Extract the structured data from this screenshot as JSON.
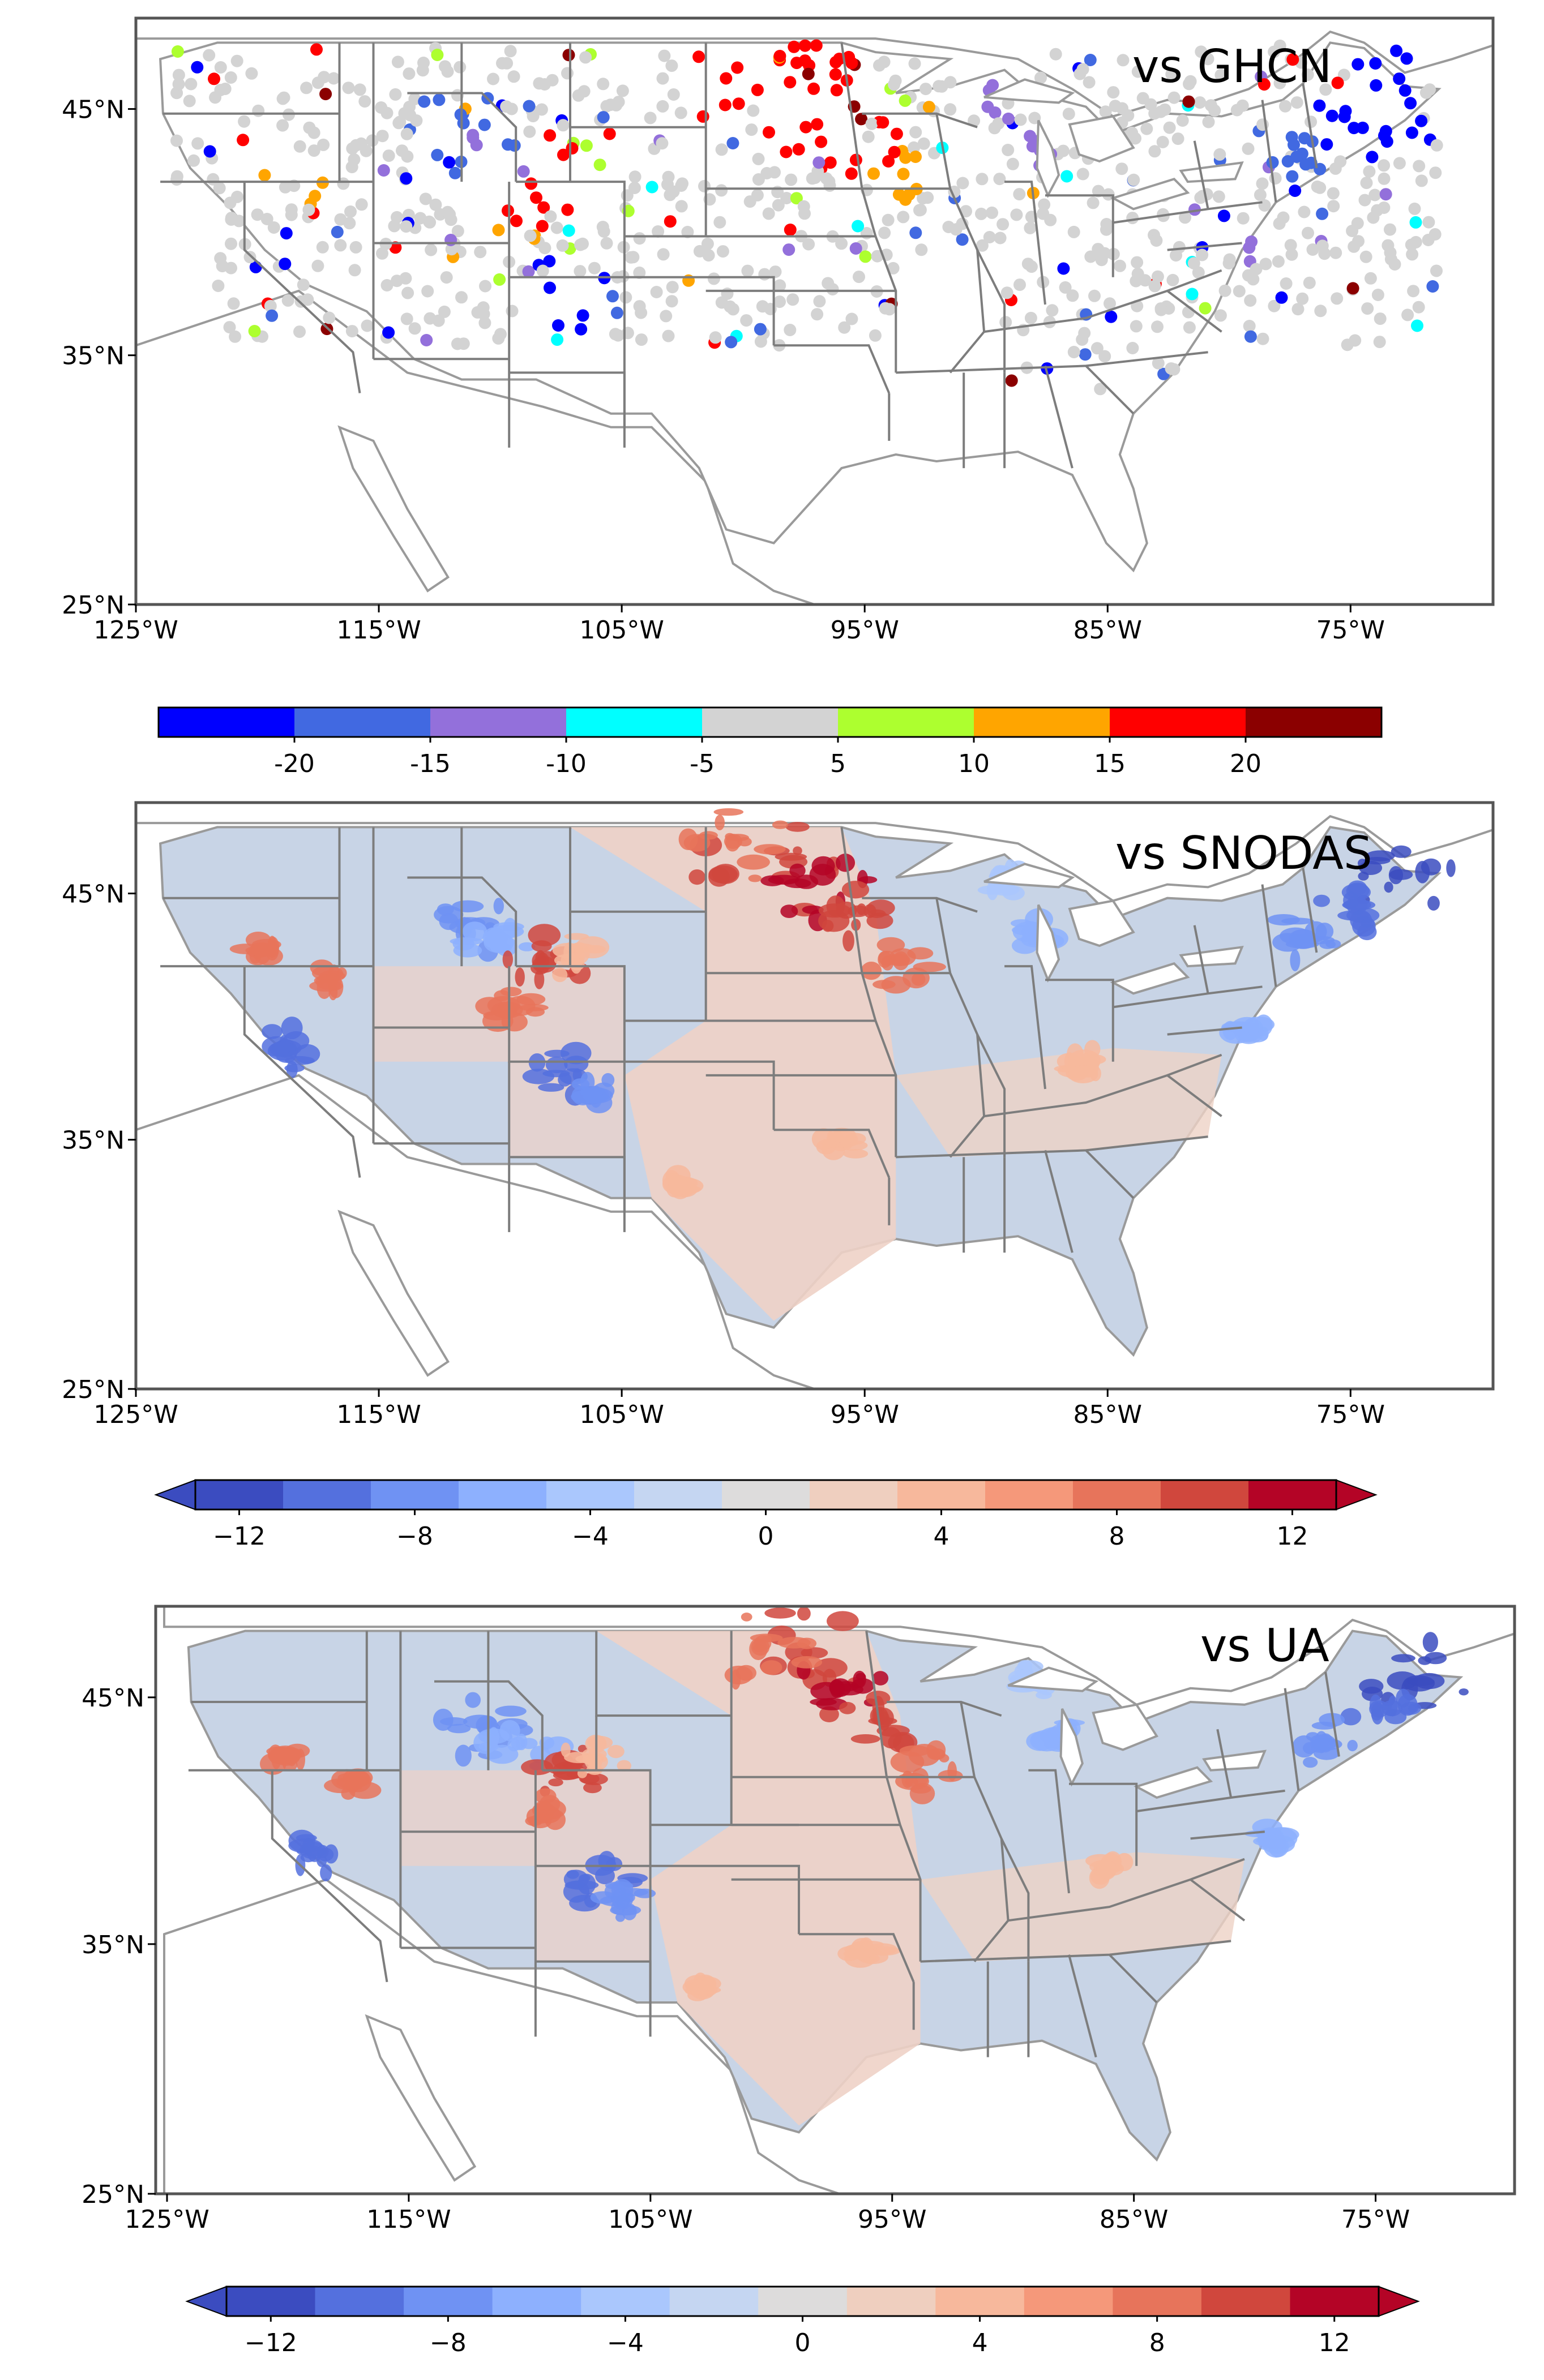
{
  "panels": [
    {
      "title": "vs GHCN",
      "yticks": [
        "45°N",
        "35°N",
        "25°N"
      ],
      "xticks": [
        "125°W",
        "115°W",
        "105°W",
        "95°W",
        "85°W",
        "75°W"
      ]
    },
    {
      "title": "vs SNODAS",
      "yticks": [
        "45°N",
        "35°N",
        "25°N"
      ],
      "xticks": [
        "125°W",
        "115°W",
        "105°W",
        "95°W",
        "85°W",
        "75°W"
      ]
    },
    {
      "title": "vs UA",
      "yticks": [
        "45°N",
        "35°N",
        "25°N"
      ],
      "xticks": [
        "125°W",
        "115°W",
        "105°W",
        "95°W",
        "85°W",
        "75°W"
      ]
    }
  ],
  "colorbars": [
    {
      "labels": [
        "-20",
        "-15",
        "-10",
        "-5",
        "5",
        "10",
        "15",
        "20"
      ],
      "colors": [
        "#0000ff",
        "#4169e1",
        "#9370db",
        "#00ffff",
        "#d3d3d3",
        "#adff2f",
        "#ffa500",
        "#ff0000",
        "#8b0000"
      ]
    },
    {
      "labels": [
        "−12",
        "−8",
        "−4",
        "0",
        "4",
        "8",
        "12"
      ],
      "colors": [
        "#3b4cc0",
        "#5470de",
        "#6f92f3",
        "#8db0fe",
        "#aac7fd",
        "#c5d6f2",
        "#dddcdc",
        "#efcfbf",
        "#f7b89c",
        "#f5987a",
        "#e7745b",
        "#d0473d",
        "#b40426"
      ]
    },
    {
      "labels": [
        "−12",
        "−8",
        "−4",
        "0",
        "4",
        "8",
        "12"
      ],
      "colors": [
        "#3b4cc0",
        "#5470de",
        "#6f92f3",
        "#8db0fe",
        "#aac7fd",
        "#c5d6f2",
        "#dddcdc",
        "#efcfbf",
        "#f7b89c",
        "#f5987a",
        "#e7745b",
        "#d0473d",
        "#b40426"
      ]
    }
  ],
  "map_colors": {
    "land_blue": "#c8d4e6",
    "land_red": "#eed2c6",
    "border": "#7d7d7d",
    "coast": "#9a9a9a"
  }
}
